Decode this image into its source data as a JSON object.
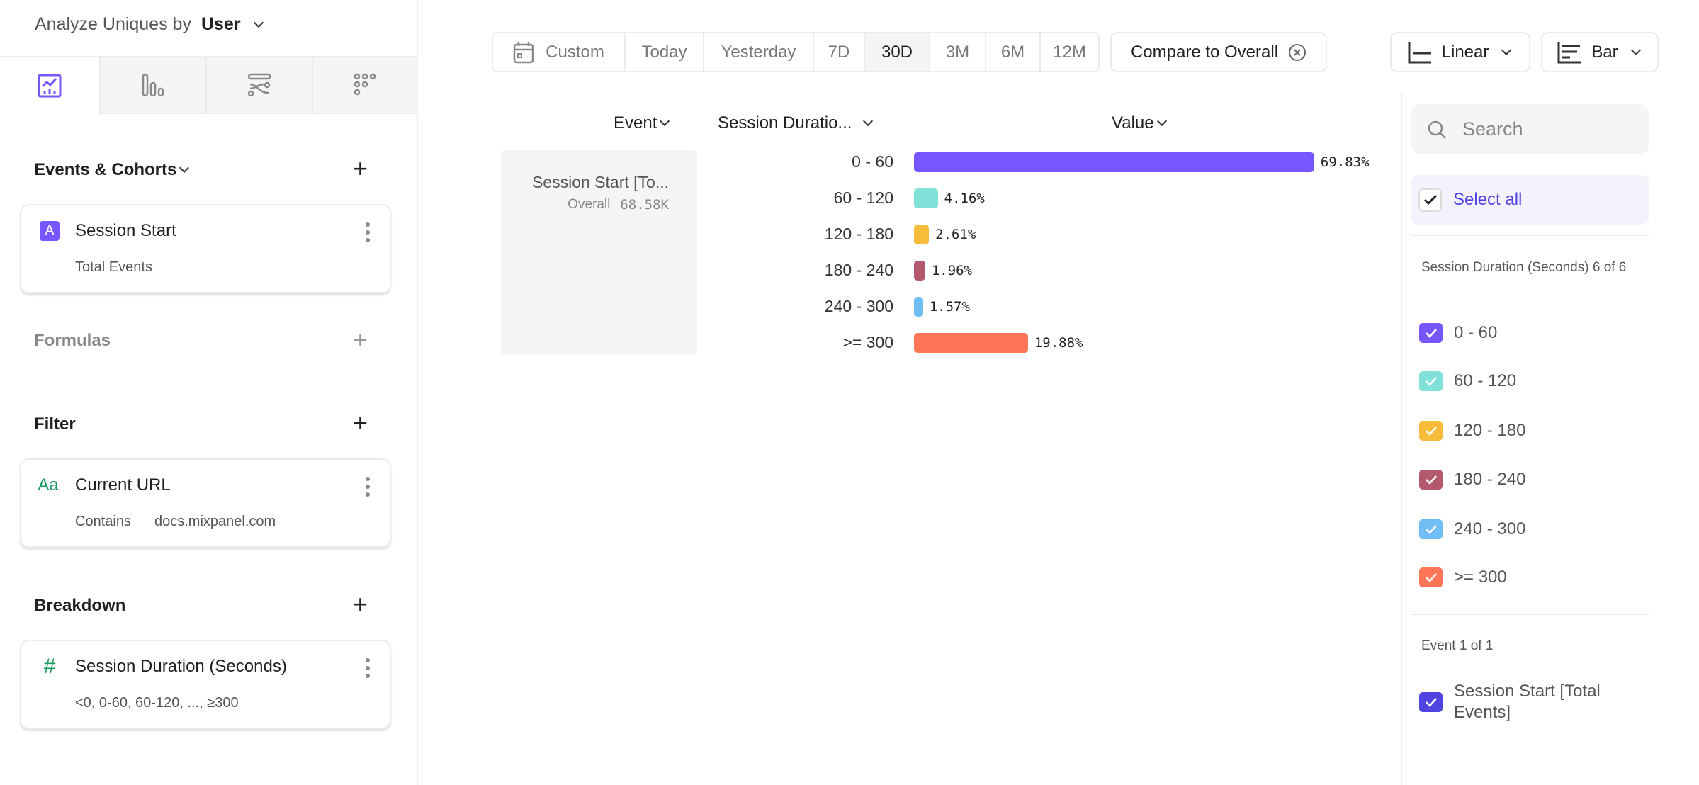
{
  "sidebar": {
    "analyze_label": "Analyze Uniques by",
    "analyze_value": "User",
    "tabs": [
      {
        "icon": "insights-chart-icon",
        "active": true
      },
      {
        "icon": "funnels-bars-icon",
        "active": false
      },
      {
        "icon": "flows-icon",
        "active": false
      },
      {
        "icon": "retention-grid-icon",
        "active": false
      }
    ],
    "events_title": "Events & Cohorts",
    "event_card": {
      "badge": "A",
      "title": "Session Start",
      "subtitle": "Total Events"
    },
    "formulas_title": "Formulas",
    "filter_title": "Filter",
    "filter_card": {
      "icon_text": "Aa",
      "title": "Current URL",
      "operator": "Contains",
      "value": "docs.mixpanel.com"
    },
    "breakdown_title": "Breakdown",
    "breakdown_card": {
      "icon_text": "#",
      "title": "Session Duration (Seconds)",
      "subtitle": "<0, 0-60, 60-120, ..., ≥300"
    }
  },
  "toolbar": {
    "date_ranges": [
      "Custom",
      "Today",
      "Yesterday",
      "7D",
      "30D",
      "3M",
      "6M",
      "12M"
    ],
    "selected_range": "30D",
    "compare_label": "Compare to Overall",
    "scale_label": "Linear",
    "chart_type_label": "Bar"
  },
  "table": {
    "headers": [
      "Event",
      "Session Duratio...",
      "Value"
    ],
    "event_name": "Session Start [To...",
    "overall_label": "Overall",
    "overall_value": "68.58K"
  },
  "chart_data": {
    "type": "bar",
    "orientation": "horizontal",
    "categories": [
      "0 - 60",
      "60 - 120",
      "120 - 180",
      "180 - 240",
      "240 - 300",
      ">= 300"
    ],
    "values": [
      69.83,
      4.16,
      2.61,
      1.96,
      1.57,
      19.88
    ],
    "value_labels": [
      "69.83%",
      "4.16%",
      "2.61%",
      "1.96%",
      "1.57%",
      "19.88%"
    ],
    "colors": [
      "#7856FF",
      "#80E1D9",
      "#F8BC3B",
      "#B2596E",
      "#72BEF4",
      "#FF7557"
    ],
    "unit": "%"
  },
  "legend": {
    "search_placeholder": "Search",
    "select_all": "Select all",
    "group_title": "Session Duration (Seconds) 6 of 6",
    "items": [
      "0 - 60",
      "60 - 120",
      "120 - 180",
      "180 - 240",
      "240 - 300",
      ">= 300"
    ],
    "event_group_title": "Event 1 of 1",
    "event_item": "Session Start [Total Events]",
    "event_color": "#4F44E0"
  }
}
